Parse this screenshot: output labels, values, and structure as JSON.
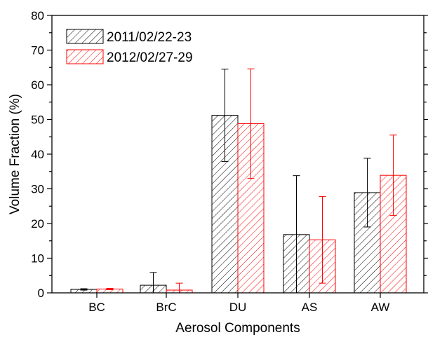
{
  "chart_data": {
    "type": "bar",
    "xlabel": "Aerosol Components",
    "ylabel": "Volume Fraction (%)",
    "ylim": [
      0,
      80
    ],
    "yticks": [
      0,
      10,
      20,
      30,
      40,
      50,
      60,
      70,
      80
    ],
    "categories": [
      "BC",
      "BrC",
      "DU",
      "AS",
      "AW"
    ],
    "legend_position": "top-left",
    "series": [
      {
        "name": "2011/02/22-23",
        "color": "#000000",
        "pattern": "diagonal-hatch",
        "values": [
          1.0,
          2.2,
          51.2,
          16.8,
          28.9
        ],
        "error": [
          0.2,
          3.7,
          13.3,
          17.0,
          9.9
        ]
      },
      {
        "name": "2012/02/27-29",
        "color": "#ff0000",
        "pattern": "diagonal-hatch",
        "values": [
          1.1,
          0.8,
          48.8,
          15.3,
          33.9
        ],
        "error": [
          0.2,
          2.0,
          15.8,
          12.5,
          11.6
        ]
      }
    ]
  }
}
